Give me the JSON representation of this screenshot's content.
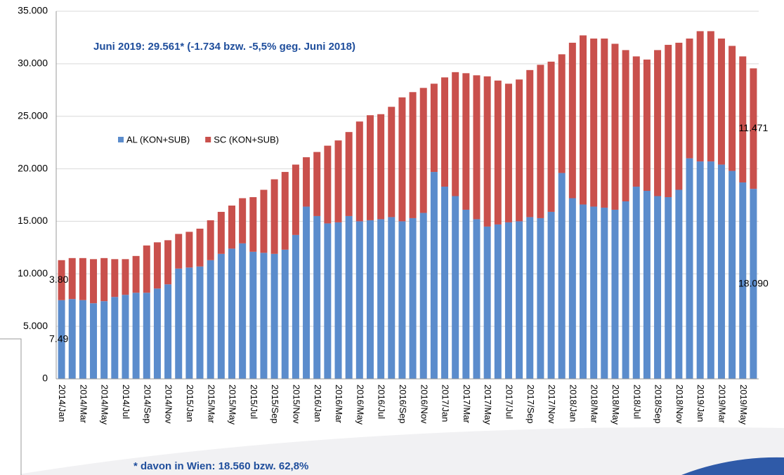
{
  "chart_data": {
    "type": "stacked-bar",
    "annotation": "Juni 2019: 29.561* (-1.734 bzw. -5,5% geg. Juni 2018)",
    "footnote": "* davon in Wien: 18.560 bzw. 62,8%",
    "categories": [
      "2014/Jan",
      null,
      "2014/Mar",
      null,
      "2014/May",
      null,
      "2014/Jul",
      null,
      "2014/Sep",
      null,
      "2014/Nov",
      null,
      "2015/Jan",
      null,
      "2015/Mar",
      null,
      "2015/May",
      null,
      "2015/Jul",
      null,
      "2015/Sep",
      null,
      "2015/Nov",
      null,
      "2016/Jan",
      null,
      "2016/Mar",
      null,
      "2016/May",
      null,
      "2016/Jul",
      null,
      "2016/Sep",
      null,
      "2016/Nov",
      null,
      "2017/Jan",
      null,
      "2017/Mar",
      null,
      "2017/May",
      null,
      "2017/Jul",
      null,
      "2017/Sep",
      null,
      "2017/Nov",
      null,
      "2018/Jan",
      null,
      "2018/Mar",
      null,
      "2018/May",
      null,
      "2018/Jul",
      null,
      "2018/Sep",
      null,
      "2018/Nov",
      null,
      "2019/Jan",
      null,
      "2019/Mar",
      null,
      "2019/May",
      null
    ],
    "series": [
      {
        "name": "AL (KON+SUB)",
        "color": "#5b8ccc",
        "values": [
          7495,
          7600,
          7500,
          7200,
          7400,
          7800,
          8000,
          8200,
          8200,
          8600,
          9000,
          10500,
          10600,
          10700,
          11300,
          11900,
          12400,
          12900,
          12100,
          12000,
          11900,
          12300,
          13700,
          16400,
          15500,
          14800,
          14900,
          15500,
          15000,
          15100,
          15200,
          15400,
          15000,
          15300,
          15800,
          19700,
          18300,
          17400,
          16100,
          15200,
          14500,
          14700,
          14900,
          15000,
          15400,
          15300,
          15900,
          19600,
          17200,
          16600,
          16400,
          16300,
          16100,
          16900,
          18300,
          17900,
          17400,
          17300,
          18000,
          21000,
          20700,
          20700,
          20400,
          19800,
          18700,
          18090
        ],
        "value_labels": [
          "7.495",
          null,
          null,
          null,
          null,
          null,
          null,
          null,
          null,
          null,
          null,
          null,
          null,
          null,
          null,
          null,
          null,
          null,
          null,
          null,
          null,
          null,
          null,
          null,
          null,
          null,
          null,
          null,
          null,
          null,
          null,
          null,
          null,
          null,
          null,
          null,
          null,
          null,
          null,
          null,
          null,
          null,
          null,
          null,
          null,
          null,
          null,
          null,
          null,
          null,
          null,
          null,
          null,
          null,
          null,
          null,
          null,
          null,
          null,
          null,
          null,
          null,
          null,
          null,
          null,
          "18.090"
        ]
      },
      {
        "name": "SC (KON+SUB)",
        "color": "#c9504c",
        "values": [
          3807,
          3900,
          4000,
          4200,
          4100,
          3600,
          3400,
          3500,
          4500,
          4400,
          4200,
          3300,
          3400,
          3600,
          3800,
          4000,
          4100,
          4300,
          5200,
          6000,
          7100,
          7400,
          6700,
          4700,
          6100,
          7400,
          7800,
          8000,
          9500,
          10000,
          10000,
          10500,
          11800,
          12000,
          11900,
          8400,
          10400,
          11800,
          13000,
          13700,
          14300,
          13700,
          13200,
          13500,
          14000,
          14600,
          14300,
          11300,
          14800,
          16100,
          16000,
          16100,
          15800,
          14400,
          12400,
          12500,
          13900,
          14500,
          14000,
          11400,
          12400,
          12400,
          12000,
          11900,
          12000,
          11471
        ],
        "value_labels": [
          "3.807",
          null,
          null,
          null,
          null,
          null,
          null,
          null,
          null,
          null,
          null,
          null,
          null,
          null,
          null,
          null,
          null,
          null,
          null,
          null,
          null,
          null,
          null,
          null,
          null,
          null,
          null,
          null,
          null,
          null,
          null,
          null,
          null,
          null,
          null,
          null,
          null,
          null,
          null,
          null,
          null,
          null,
          null,
          null,
          null,
          null,
          null,
          null,
          null,
          null,
          null,
          null,
          null,
          null,
          null,
          null,
          null,
          null,
          null,
          null,
          null,
          null,
          null,
          null,
          null,
          "11.471"
        ]
      }
    ],
    "ylim": [
      0,
      35000
    ],
    "yticks": [
      0,
      {
        "value": 5000,
        "label": "5.000"
      },
      {
        "value": 10000,
        "label": "10.000"
      },
      {
        "value": 15000,
        "label": "15.000"
      },
      {
        "value": 20000,
        "label": "20.000"
      },
      {
        "value": 25000,
        "label": "25.000"
      },
      {
        "value": 30000,
        "label": "30.000"
      },
      {
        "value": 35000,
        "label": "35.000"
      }
    ],
    "grid": true,
    "legend": "top-left"
  }
}
